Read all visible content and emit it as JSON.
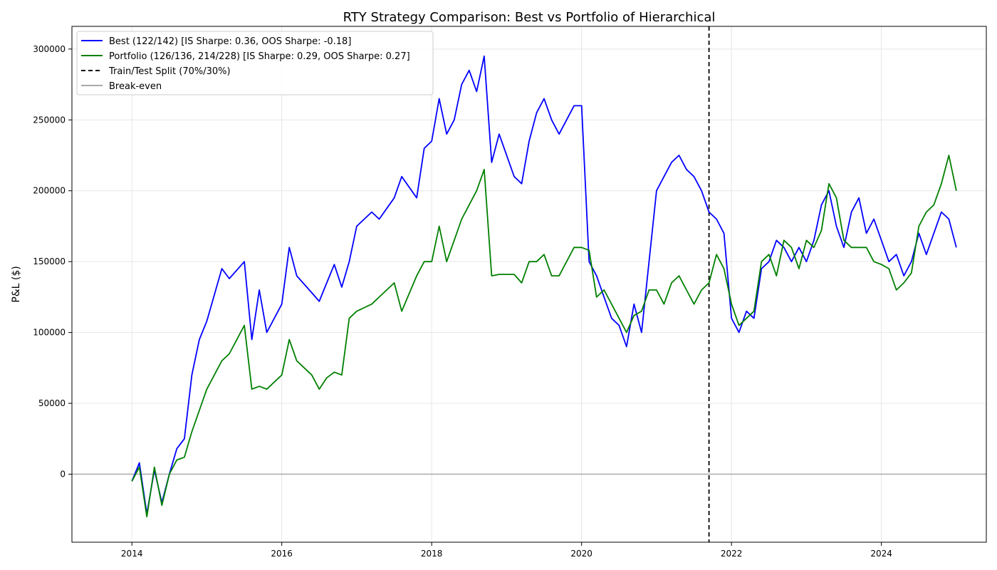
{
  "chart_data": {
    "type": "line",
    "title": "RTY Strategy Comparison: Best vs Portfolio of Hierarchical",
    "xlabel": "",
    "ylabel": "P&L ($)",
    "xlim": [
      2013.2,
      2025.4
    ],
    "ylim": [
      -48000,
      316000
    ],
    "x_ticks": [
      2014,
      2016,
      2018,
      2020,
      2022,
      2024
    ],
    "x_tick_labels": [
      "2014",
      "2016",
      "2018",
      "2020",
      "2022",
      "2024"
    ],
    "y_ticks": [
      0,
      50000,
      100000,
      150000,
      200000,
      250000,
      300000
    ],
    "y_tick_labels": [
      "0",
      "50000",
      "100000",
      "150000",
      "200000",
      "250000",
      "300000"
    ],
    "grid": true,
    "legend_position": "top-left",
    "split": {
      "x": 2021.7,
      "label": "Train/Test Split (70%/30%)",
      "color": "#000000",
      "style": "dashed"
    },
    "baseline": {
      "y": 0,
      "label": "Break-even",
      "color": "#aaaaaa"
    },
    "series": [
      {
        "name": "Best (122/142) [IS Sharpe: 0.36, OOS Sharpe: -0.18]",
        "color": "#0000ff",
        "x": [
          2014.0,
          2014.1,
          2014.2,
          2014.3,
          2014.4,
          2014.5,
          2014.6,
          2014.7,
          2014.8,
          2014.9,
          2015.0,
          2015.2,
          2015.3,
          2015.5,
          2015.6,
          2015.7,
          2015.8,
          2016.0,
          2016.1,
          2016.2,
          2016.4,
          2016.5,
          2016.6,
          2016.7,
          2016.8,
          2016.9,
          2017.0,
          2017.2,
          2017.3,
          2017.5,
          2017.6,
          2017.8,
          2017.9,
          2018.0,
          2018.1,
          2018.2,
          2018.3,
          2018.4,
          2018.5,
          2018.6,
          2018.7,
          2018.8,
          2018.9,
          2019.1,
          2019.2,
          2019.3,
          2019.4,
          2019.5,
          2019.6,
          2019.7,
          2019.9,
          2020.0,
          2020.1,
          2020.2,
          2020.3,
          2020.4,
          2020.5,
          2020.6,
          2020.7,
          2020.8,
          2020.9,
          2021.0,
          2021.1,
          2021.2,
          2021.3,
          2021.4,
          2021.5,
          2021.6,
          2021.7,
          2021.8,
          2021.9,
          2022.0,
          2022.1,
          2022.2,
          2022.3,
          2022.4,
          2022.5,
          2022.6,
          2022.7,
          2022.8,
          2022.9,
          2023.0,
          2023.1,
          2023.2,
          2023.3,
          2023.4,
          2023.5,
          2023.6,
          2023.7,
          2023.8,
          2023.9,
          2024.0,
          2024.1,
          2024.2,
          2024.3,
          2024.4,
          2024.5,
          2024.6,
          2024.7,
          2024.8,
          2024.9,
          2025.0
        ],
        "values": [
          -5000,
          8000,
          -28000,
          3000,
          -20000,
          0,
          18000,
          25000,
          70000,
          95000,
          108000,
          145000,
          138000,
          150000,
          95000,
          130000,
          100000,
          120000,
          160000,
          140000,
          128000,
          122000,
          135000,
          148000,
          132000,
          150000,
          175000,
          185000,
          180000,
          195000,
          210000,
          195000,
          230000,
          235000,
          265000,
          240000,
          250000,
          275000,
          285000,
          270000,
          295000,
          220000,
          240000,
          210000,
          205000,
          235000,
          255000,
          265000,
          250000,
          240000,
          260000,
          260000,
          150000,
          140000,
          125000,
          110000,
          105000,
          90000,
          120000,
          100000,
          150000,
          200000,
          210000,
          220000,
          225000,
          215000,
          210000,
          200000,
          185000,
          180000,
          170000,
          110000,
          100000,
          115000,
          110000,
          145000,
          150000,
          165000,
          160000,
          150000,
          160000,
          150000,
          165000,
          190000,
          200000,
          175000,
          160000,
          185000,
          195000,
          170000,
          180000,
          165000,
          150000,
          155000,
          140000,
          150000,
          170000,
          155000,
          170000,
          185000,
          180000,
          160000
        ]
      },
      {
        "name": "Portfolio (126/136, 214/228) [IS Sharpe: 0.29, OOS Sharpe: 0.27]",
        "color": "#008000",
        "x": [
          2014.0,
          2014.1,
          2014.2,
          2014.3,
          2014.4,
          2014.5,
          2014.6,
          2014.7,
          2014.8,
          2014.9,
          2015.0,
          2015.2,
          2015.3,
          2015.5,
          2015.6,
          2015.7,
          2015.8,
          2016.0,
          2016.1,
          2016.2,
          2016.4,
          2016.5,
          2016.6,
          2016.7,
          2016.8,
          2016.9,
          2017.0,
          2017.2,
          2017.3,
          2017.5,
          2017.6,
          2017.8,
          2017.9,
          2018.0,
          2018.1,
          2018.2,
          2018.3,
          2018.4,
          2018.5,
          2018.6,
          2018.7,
          2018.8,
          2018.9,
          2019.1,
          2019.2,
          2019.3,
          2019.4,
          2019.5,
          2019.6,
          2019.7,
          2019.9,
          2020.0,
          2020.1,
          2020.2,
          2020.3,
          2020.4,
          2020.5,
          2020.6,
          2020.7,
          2020.8,
          2020.9,
          2021.0,
          2021.1,
          2021.2,
          2021.3,
          2021.4,
          2021.5,
          2021.6,
          2021.7,
          2021.8,
          2021.9,
          2022.0,
          2022.1,
          2022.2,
          2022.3,
          2022.4,
          2022.5,
          2022.6,
          2022.7,
          2022.8,
          2022.9,
          2023.0,
          2023.1,
          2023.2,
          2023.3,
          2023.4,
          2023.5,
          2023.6,
          2023.7,
          2023.8,
          2023.9,
          2024.0,
          2024.1,
          2024.2,
          2024.3,
          2024.4,
          2024.5,
          2024.6,
          2024.7,
          2024.8,
          2024.9,
          2025.0
        ],
        "values": [
          -5000,
          5000,
          -30000,
          5000,
          -22000,
          0,
          10000,
          12000,
          30000,
          45000,
          60000,
          80000,
          85000,
          105000,
          60000,
          62000,
          60000,
          70000,
          95000,
          80000,
          70000,
          60000,
          68000,
          72000,
          70000,
          110000,
          115000,
          120000,
          125000,
          135000,
          115000,
          140000,
          150000,
          150000,
          175000,
          150000,
          165000,
          180000,
          190000,
          200000,
          215000,
          140000,
          141000,
          141000,
          135000,
          150000,
          150000,
          155000,
          140000,
          140000,
          160000,
          160000,
          158000,
          125000,
          130000,
          120000,
          110000,
          100000,
          112000,
          115000,
          130000,
          130000,
          120000,
          135000,
          140000,
          130000,
          120000,
          130000,
          135000,
          155000,
          145000,
          120000,
          105000,
          110000,
          115000,
          150000,
          155000,
          140000,
          165000,
          160000,
          145000,
          165000,
          160000,
          172000,
          205000,
          195000,
          165000,
          160000,
          160000,
          160000,
          150000,
          148000,
          145000,
          130000,
          135000,
          142000,
          175000,
          185000,
          190000,
          205000,
          225000,
          200000
        ]
      }
    ]
  }
}
